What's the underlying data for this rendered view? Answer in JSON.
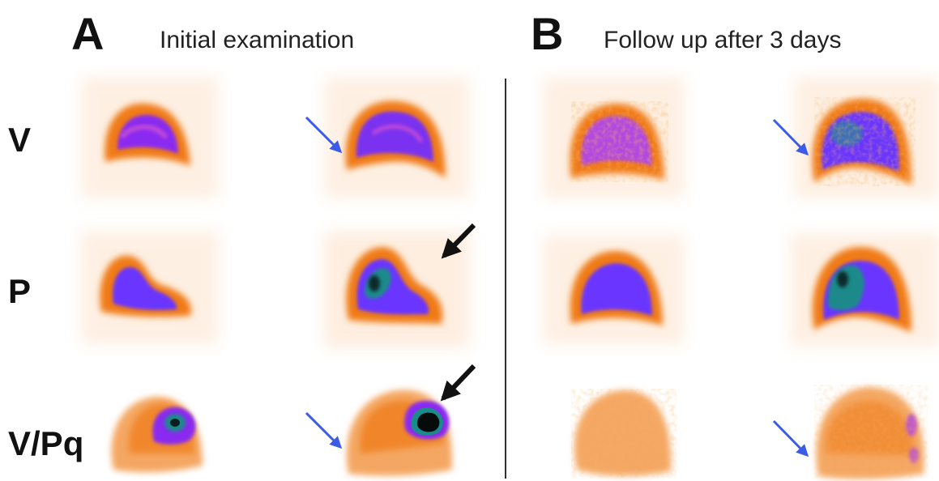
{
  "panels": [
    {
      "letter": "A",
      "title": "Initial examination"
    },
    {
      "letter": "B",
      "title": "Follow up after 3 days"
    }
  ],
  "rows": [
    {
      "label": "V"
    },
    {
      "label": "P"
    },
    {
      "label": "V/Pq"
    }
  ],
  "colors": {
    "background": "#ffffff",
    "low": "#f7c9a0",
    "orange": "#f07a18",
    "purple": "#8a2cf0",
    "violet": "#6a34ff",
    "teal": "#1a8a8a",
    "black": "#0a1e1e",
    "blue_arrow": "#3b5be8",
    "black_arrow": "#111111"
  }
}
